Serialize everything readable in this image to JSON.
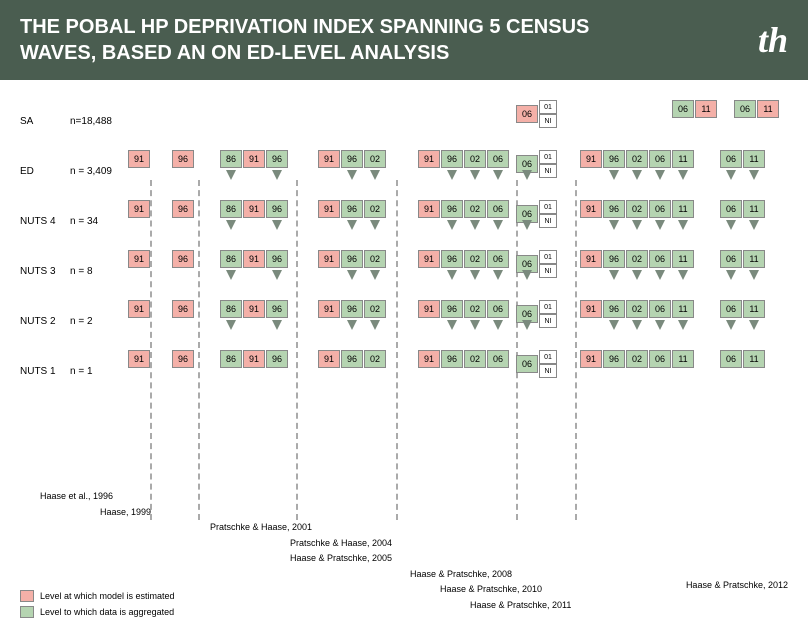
{
  "header": {
    "title": "THE POBAL HP DEPRIVATION INDEX SPANNING 5 CENSUS WAVES, BASED AN ON ED-LEVEL ANALYSIS",
    "logo": "th"
  },
  "colors": {
    "header_bg": "#4a5d50",
    "pink": "#f4b0a8",
    "green": "#b5d4b1",
    "arrow": "#7a8a7d"
  },
  "rows": [
    {
      "label": "SA",
      "n": "n=18,488"
    },
    {
      "label": "ED",
      "n": "n = 3,409"
    },
    {
      "label": "NUTS 4",
      "n": "n = 34"
    },
    {
      "label": "NUTS 3",
      "n": "n = 8"
    },
    {
      "label": "NUTS 2",
      "n": "n = 2"
    },
    {
      "label": "NUTS 1",
      "n": "n = 1"
    }
  ],
  "years": {
    "y91": "91",
    "y96": "96",
    "y86": "86",
    "y02": "02",
    "y06": "06",
    "y11": "11",
    "y01": "01",
    "ni": "NI"
  },
  "citations": [
    {
      "text": "Haase et al., 1996",
      "indent": 0
    },
    {
      "text": "Haase, 1999",
      "indent": 60
    },
    {
      "text": "Pratschke & Haase, 2001",
      "indent": 170
    },
    {
      "text": "Pratschke & Haase, 2004",
      "indent": 250
    },
    {
      "text": "Haase & Pratschke, 2005",
      "indent": 250
    },
    {
      "text": "Haase & Pratschke, 2008",
      "indent": 370
    },
    {
      "text": "Haase & Pratschke, 2010",
      "indent": 400
    },
    {
      "text": "Haase & Pratschke, 2011",
      "indent": 430
    }
  ],
  "cite_right": "Haase & Pratschke, 2012",
  "legend": {
    "estimated": "Level at which model is estimated",
    "aggregated": "Level to which data is aggregated"
  }
}
